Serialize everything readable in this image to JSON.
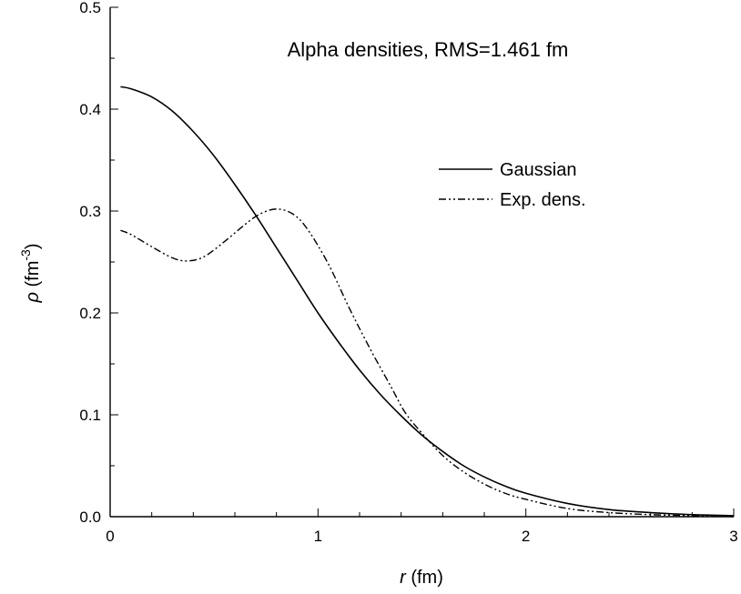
{
  "chart_data": {
    "type": "line",
    "title": "Alpha densities, RMS=1.461 fm",
    "xlabel": {
      "italic": "r",
      "rest": " (fm)"
    },
    "ylabel": {
      "italic": "ρ",
      "rest": " (fm",
      "sup": "-3",
      "close": ")"
    },
    "xlim": [
      0,
      3
    ],
    "ylim": [
      0,
      0.5
    ],
    "xticks": [
      0,
      1,
      2,
      3
    ],
    "xtick_labels": [
      "0",
      "1",
      "2",
      "3"
    ],
    "yticks": [
      0,
      0.1,
      0.2,
      0.3,
      0.4,
      0.5
    ],
    "ytick_labels": [
      "0.0",
      "0.1",
      "0.2",
      "0.3",
      "0.4",
      "0.5"
    ],
    "grid": false,
    "legend_position": "upper-right",
    "series": [
      {
        "name": "Gaussian",
        "style": "solid",
        "color": "#000000",
        "x": [
          0.05,
          0.1,
          0.2,
          0.3,
          0.4,
          0.5,
          0.6,
          0.7,
          0.8,
          0.9,
          1.0,
          1.1,
          1.2,
          1.3,
          1.4,
          1.5,
          1.6,
          1.7,
          1.8,
          1.9,
          2.0,
          2.2,
          2.4,
          2.6,
          2.8,
          3.0
        ],
        "y": [
          0.422,
          0.42,
          0.412,
          0.398,
          0.378,
          0.354,
          0.326,
          0.296,
          0.264,
          0.232,
          0.2,
          0.171,
          0.144,
          0.12,
          0.099,
          0.08,
          0.064,
          0.05,
          0.039,
          0.03,
          0.023,
          0.013,
          0.007,
          0.004,
          0.002,
          0.001
        ]
      },
      {
        "name": "Exp. dens.",
        "style": "dash-dot-dot",
        "color": "#000000",
        "x": [
          0.05,
          0.1,
          0.2,
          0.3,
          0.37,
          0.45,
          0.55,
          0.65,
          0.72,
          0.8,
          0.88,
          0.95,
          1.05,
          1.15,
          1.25,
          1.35,
          1.42,
          1.5,
          1.6,
          1.7,
          1.8,
          1.9,
          2.0,
          2.2,
          2.4,
          2.6,
          2.8,
          3.0
        ],
        "y": [
          0.281,
          0.277,
          0.265,
          0.254,
          0.251,
          0.255,
          0.27,
          0.287,
          0.297,
          0.302,
          0.297,
          0.282,
          0.248,
          0.205,
          0.165,
          0.128,
          0.102,
          0.082,
          0.06,
          0.044,
          0.032,
          0.023,
          0.017,
          0.008,
          0.004,
          0.002,
          0.001,
          0.0
        ]
      }
    ]
  }
}
